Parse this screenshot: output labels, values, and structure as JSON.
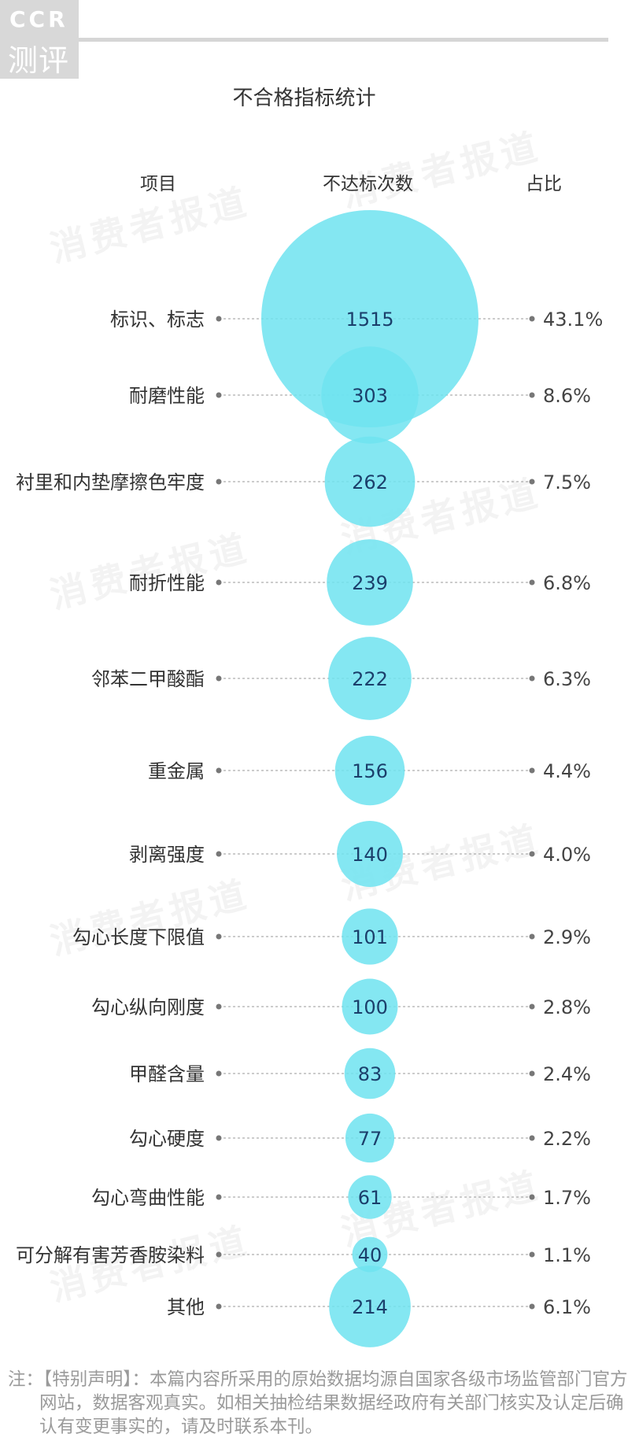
{
  "logo": {
    "line1": "CCR",
    "line2": "测评"
  },
  "watermark": "消费者报道",
  "chart_data": {
    "type": "bubble",
    "title": "不合格指标统计",
    "columns": {
      "item": "项目",
      "count": "不达标次数",
      "share": "占比"
    },
    "rows": [
      {
        "label": "标识、标志",
        "value": 1515,
        "share": "43.1%"
      },
      {
        "label": "耐磨性能",
        "value": 303,
        "share": "8.6%"
      },
      {
        "label": "衬里和内垫摩擦色牢度",
        "value": 262,
        "share": "7.5%"
      },
      {
        "label": "耐折性能",
        "value": 239,
        "share": "6.8%"
      },
      {
        "label": "邻苯二甲酸酯",
        "value": 222,
        "share": "6.3%"
      },
      {
        "label": "重金属",
        "value": 156,
        "share": "4.4%"
      },
      {
        "label": "剥离强度",
        "value": 140,
        "share": "4.0%"
      },
      {
        "label": "勾心长度下限值",
        "value": 101,
        "share": "2.9%"
      },
      {
        "label": "勾心纵向刚度",
        "value": 100,
        "share": "2.8%"
      },
      {
        "label": "甲醛含量",
        "value": 83,
        "share": "2.4%"
      },
      {
        "label": "勾心硬度",
        "value": 77,
        "share": "2.2%"
      },
      {
        "label": "勾心弯曲性能",
        "value": 61,
        "share": "1.7%"
      },
      {
        "label": "可分解有害芳香胺染料",
        "value": 40,
        "share": "1.1%"
      },
      {
        "label": "其他",
        "value": 214,
        "share": "6.1%"
      }
    ],
    "bubble_color": "#6fe3f0",
    "value_text_color": "#1b3f6b"
  },
  "note": "注：【特别声明】：本篇内容所采用的原始数据均源自国家各级市场监管部门官方网站，数据客观真实。如相关抽检结果数据经政府有关部门核实及认定后确认有变更事实的，请及时联系本刊。"
}
